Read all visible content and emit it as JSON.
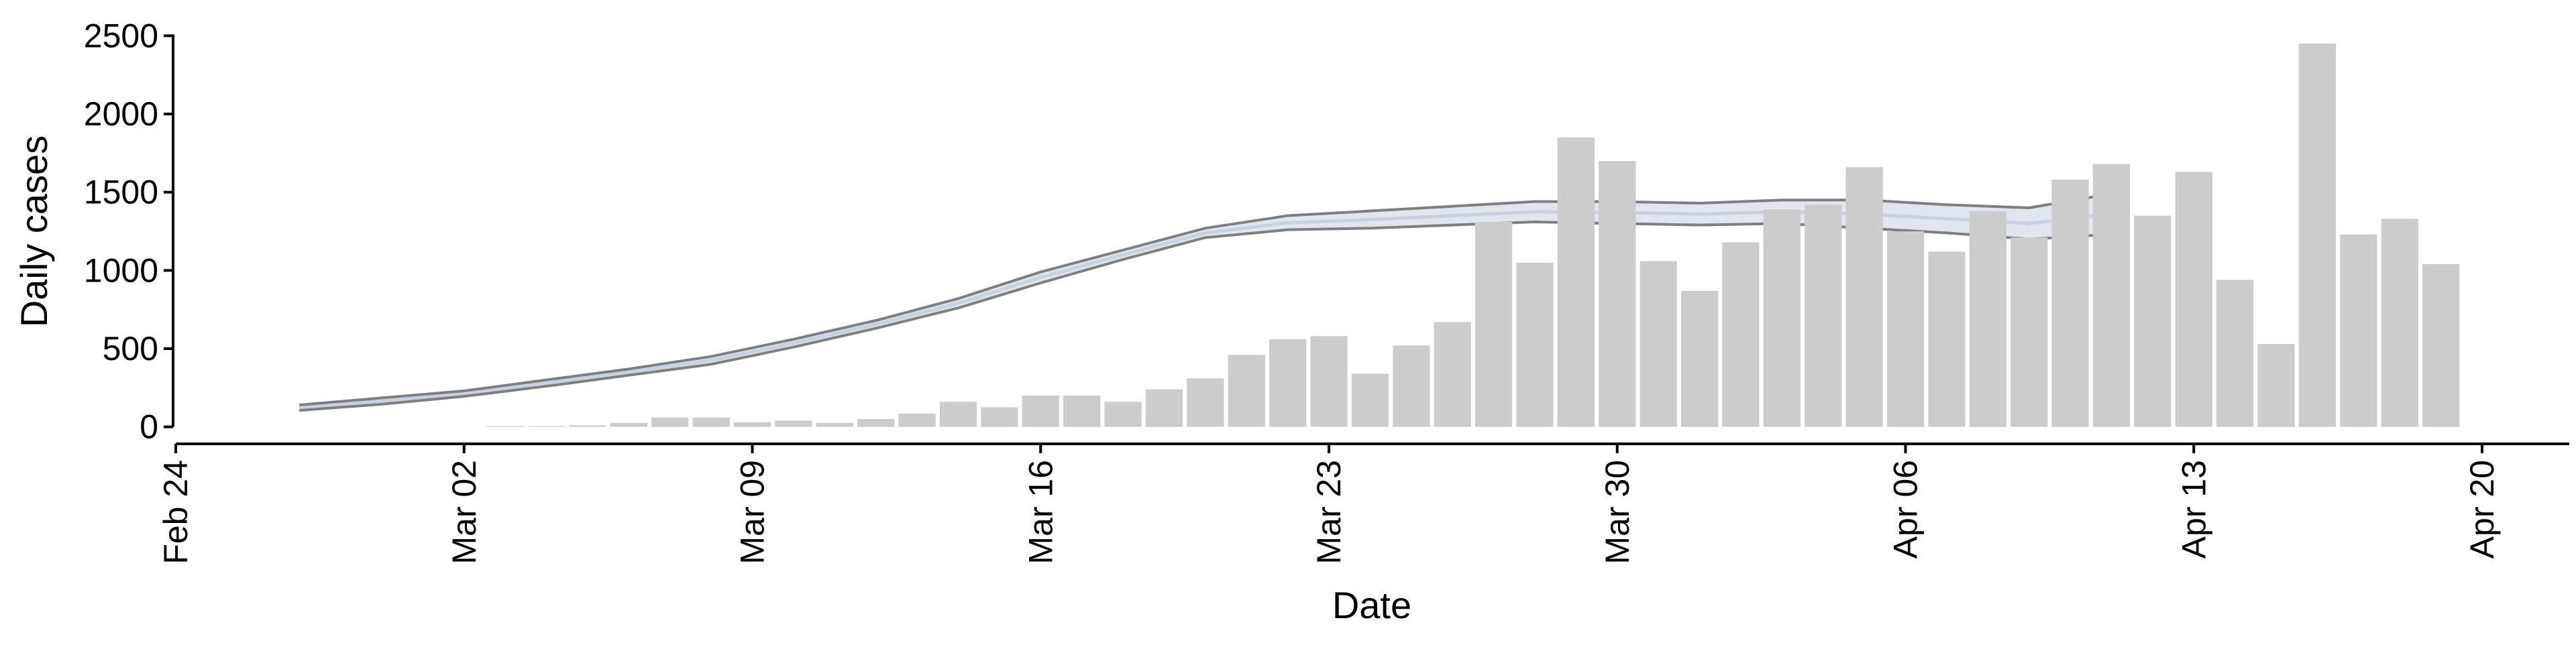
{
  "chart_data": {
    "type": "bar",
    "xlabel": "Date",
    "ylabel": "Daily cases",
    "xlim": [
      "2020-02-24",
      "2020-04-20"
    ],
    "ylim": [
      -100,
      2600
    ],
    "x_ticks": [
      {
        "date": "2020-02-24",
        "label": "Feb 24"
      },
      {
        "date": "2020-03-02",
        "label": "Mar 02"
      },
      {
        "date": "2020-03-09",
        "label": "Mar 09"
      },
      {
        "date": "2020-03-16",
        "label": "Mar 16"
      },
      {
        "date": "2020-03-23",
        "label": "Mar 23"
      },
      {
        "date": "2020-03-30",
        "label": "Mar 30"
      },
      {
        "date": "2020-04-06",
        "label": "Apr 06"
      },
      {
        "date": "2020-04-13",
        "label": "Apr 13"
      },
      {
        "date": "2020-04-20",
        "label": "Apr 20"
      }
    ],
    "y_ticks": [
      0,
      500,
      1000,
      1500,
      2000,
      2500
    ],
    "bars": {
      "color": "#cccccc",
      "dates": [
        "2020-03-03",
        "2020-03-04",
        "2020-03-05",
        "2020-03-06",
        "2020-03-07",
        "2020-03-08",
        "2020-03-09",
        "2020-03-10",
        "2020-03-11",
        "2020-03-12",
        "2020-03-13",
        "2020-03-14",
        "2020-03-15",
        "2020-03-16",
        "2020-03-17",
        "2020-03-18",
        "2020-03-19",
        "2020-03-20",
        "2020-03-21",
        "2020-03-22",
        "2020-03-23",
        "2020-03-24",
        "2020-03-25",
        "2020-03-26",
        "2020-03-27",
        "2020-03-28",
        "2020-03-29",
        "2020-03-30",
        "2020-03-31",
        "2020-04-01",
        "2020-04-02",
        "2020-04-03",
        "2020-04-04",
        "2020-04-05",
        "2020-04-06",
        "2020-04-07",
        "2020-04-08",
        "2020-04-09",
        "2020-04-10",
        "2020-04-11",
        "2020-04-12",
        "2020-04-13",
        "2020-04-14",
        "2020-04-15",
        "2020-04-16",
        "2020-04-17",
        "2020-04-18",
        "2020-04-19"
      ],
      "values": [
        5,
        5,
        10,
        25,
        60,
        60,
        30,
        40,
        25,
        50,
        85,
        160,
        125,
        200,
        200,
        160,
        240,
        310,
        460,
        560,
        580,
        340,
        520,
        670,
        1310,
        1050,
        1850,
        1700,
        1060,
        870,
        1180,
        1390,
        1420,
        1660,
        1250,
        1120,
        1380,
        1210,
        1580,
        1680,
        1350,
        1630,
        940,
        530,
        2450,
        1230,
        1330,
        1040
      ]
    },
    "trend": {
      "band_color": "#dde2ec",
      "line_color": "#7f7f7f",
      "dates": [
        "2020-02-27",
        "2020-02-29",
        "2020-03-02",
        "2020-03-04",
        "2020-03-06",
        "2020-03-08",
        "2020-03-10",
        "2020-03-12",
        "2020-03-14",
        "2020-03-16",
        "2020-03-18",
        "2020-03-20",
        "2020-03-22",
        "2020-03-24",
        "2020-03-26",
        "2020-03-28",
        "2020-03-30",
        "2020-04-01",
        "2020-04-03",
        "2020-04-05",
        "2020-04-07",
        "2020-04-09",
        "2020-04-11"
      ],
      "upper": [
        140,
        185,
        230,
        300,
        370,
        450,
        560,
        680,
        820,
        990,
        1130,
        1270,
        1350,
        1380,
        1410,
        1440,
        1440,
        1430,
        1450,
        1450,
        1420,
        1400,
        1490
      ],
      "lower": [
        105,
        145,
        195,
        260,
        330,
        400,
        510,
        630,
        760,
        920,
        1070,
        1210,
        1260,
        1270,
        1290,
        1310,
        1300,
        1290,
        1300,
        1270,
        1240,
        1200,
        1230
      ]
    }
  }
}
